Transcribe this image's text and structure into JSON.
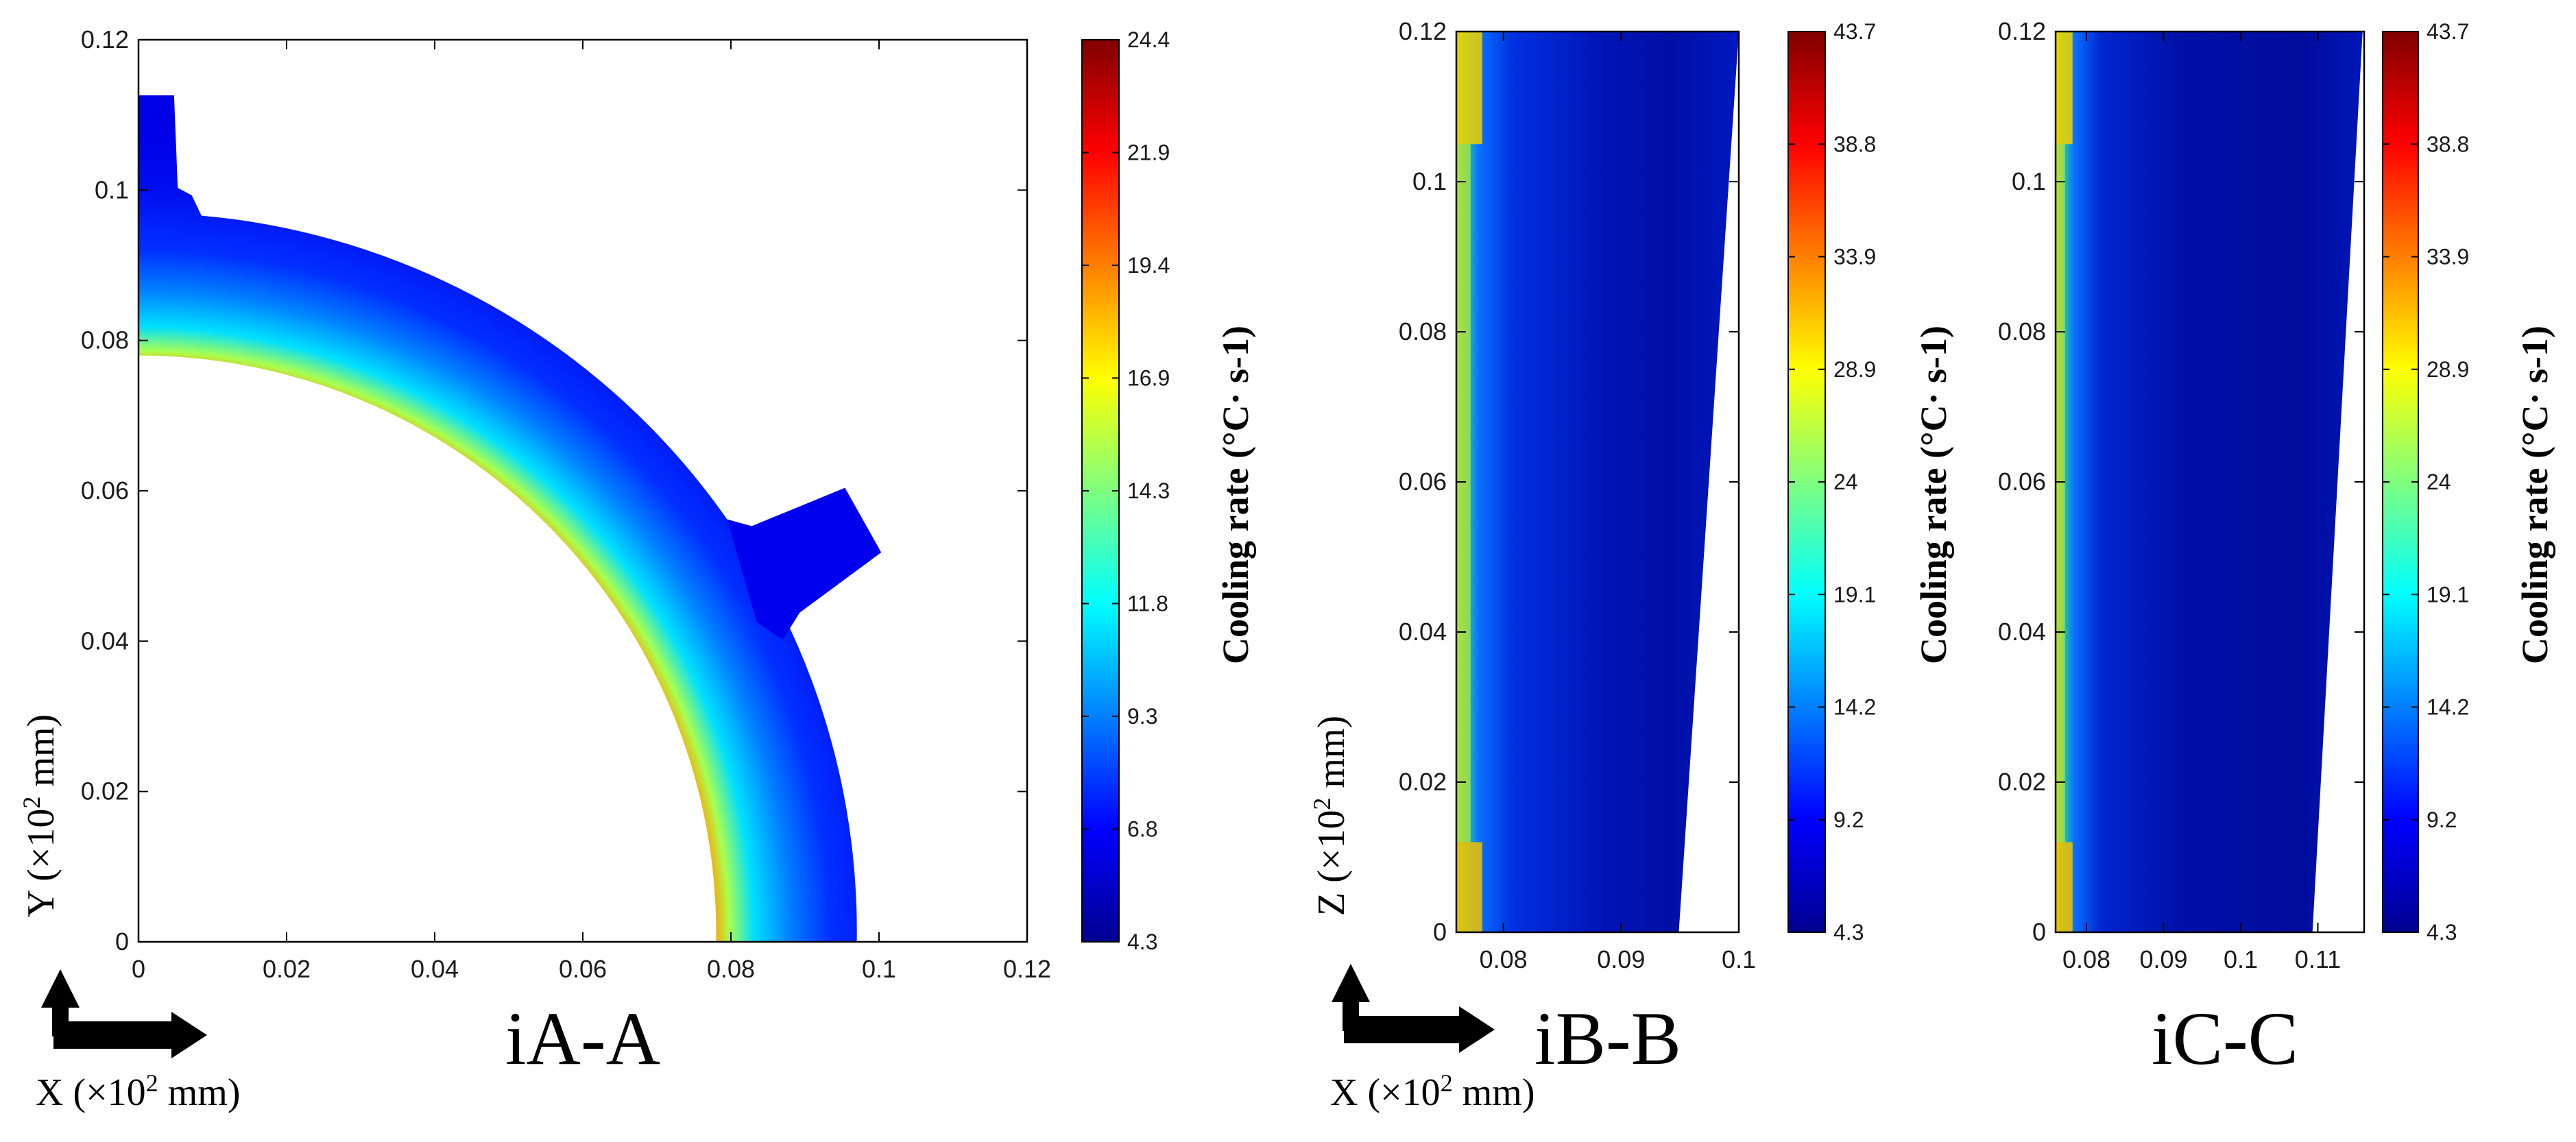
{
  "chart_data": [
    {
      "type": "heatmap",
      "title": "iA-A",
      "x_axis": "X",
      "y_axis": "Y",
      "axis_unit": "mm",
      "xlabel": "X (×10² mm)",
      "ylabel": "Y (×10² mm)",
      "xlim": [
        0,
        0.12
      ],
      "ylim": [
        0,
        0.12
      ],
      "xticks": [
        "0",
        "0.02",
        "0.04",
        "0.06",
        "0.08",
        "0.1",
        "0.12"
      ],
      "yticks": [
        "0",
        "0.02",
        "0.04",
        "0.06",
        "0.08",
        "0.1",
        "0.12"
      ],
      "geometry": "quarter annulus, inner radius 0.078, outer radius 0.097, with flange on y-axis and radial nozzle near 32°",
      "colorbar": {
        "label": "Cooling rate (°C· s-1)",
        "range": [
          4.3,
          24.4
        ],
        "ticks": [
          "24.4",
          "21.9",
          "19.4",
          "16.9",
          "14.3",
          "11.8",
          "9.3",
          "6.8",
          "4.3"
        ]
      },
      "field": {
        "inner_surface_value": 24.4,
        "bulk_value": 4.3,
        "colormap": "jet"
      }
    },
    {
      "type": "heatmap",
      "title": "iB-B",
      "x_axis": "X",
      "y_axis": "Z",
      "axis_unit": "mm",
      "xlabel": "X (×10² mm)",
      "ylabel": "Z (×10² mm)",
      "xlim": [
        0.076,
        0.1
      ],
      "ylim": [
        0,
        0.12
      ],
      "xticks": [
        "0.08",
        "0.09",
        "0.1"
      ],
      "yticks": [
        "0",
        "0.02",
        "0.04",
        "0.06",
        "0.08",
        "0.1",
        "0.12"
      ],
      "geometry": "wall section, right edge tapering from x=0.095 at z=0 to x=0.1 at z=0.12",
      "colorbar": {
        "label": "Cooling rate (°C· s-1)",
        "range": [
          4.3,
          43.7
        ],
        "ticks": [
          "43.7",
          "38.8",
          "33.9",
          "28.9",
          "24",
          "19.1",
          "14.2",
          "9.2",
          "4.3"
        ]
      },
      "field": {
        "left_edge_max": 24,
        "bulk_value": 5.5,
        "colormap": "jet"
      }
    },
    {
      "type": "heatmap",
      "title": "iC-C",
      "x_axis": "",
      "y_axis": "",
      "xlim": [
        0.076,
        0.116
      ],
      "ylim": [
        0,
        0.12
      ],
      "xticks": [
        "0.08",
        "0.09",
        "0.1",
        "0.11"
      ],
      "yticks": [
        "0",
        "0.02",
        "0.04",
        "0.06",
        "0.08",
        "0.1",
        "0.12"
      ],
      "geometry": "wall section, right edge tapering from x=0.109 at z=0 to x=0.116 at z=0.12",
      "colorbar": {
        "label": "Cooling rate (°C· s-1)",
        "range": [
          4.3,
          43.7
        ],
        "ticks": [
          "43.7",
          "38.8",
          "33.9",
          "28.9",
          "24",
          "19.1",
          "14.2",
          "9.2",
          "4.3"
        ]
      },
      "field": {
        "left_edge_max": 24,
        "bulk_value": 5,
        "colormap": "jet"
      }
    }
  ]
}
